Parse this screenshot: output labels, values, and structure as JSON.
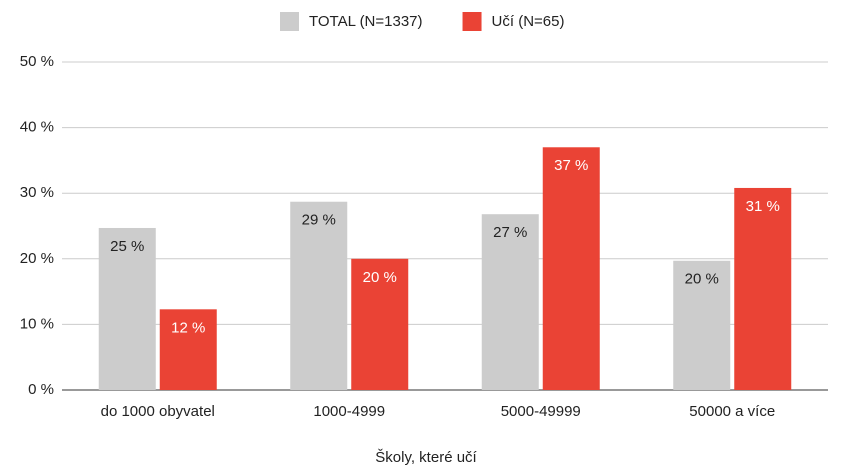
{
  "chart_data": {
    "type": "bar",
    "x_label": "Školy, které učí",
    "categories": [
      "do 1000 obyvatel",
      "1000-4999",
      "5000-49999",
      "50000 a více"
    ],
    "series": [
      {
        "name": "TOTAL (N=1337)",
        "color": "#cccccc",
        "label_color": "#222222",
        "values": [
          24.7,
          28.7,
          26.8,
          19.7
        ],
        "value_labels": [
          "25 %",
          "29 %",
          "27 %",
          "20 %"
        ]
      },
      {
        "name": "Učí (N=65)",
        "color": "#ea4335",
        "label_color": "#ffffff",
        "values": [
          12.3,
          20.0,
          37.0,
          30.8
        ],
        "value_labels": [
          "12 %",
          "20 %",
          "37 %",
          "31 %"
        ]
      }
    ],
    "ylim": [
      0,
      50
    ],
    "yticks": [
      {
        "value": 0,
        "label": "0 %"
      },
      {
        "value": 10,
        "label": "10 %"
      },
      {
        "value": 20,
        "label": "20 %"
      },
      {
        "value": 30,
        "label": "30 %"
      },
      {
        "value": 40,
        "label": "40 %"
      },
      {
        "value": 50,
        "label": "50 %"
      }
    ],
    "grid": true,
    "legend": "top"
  }
}
